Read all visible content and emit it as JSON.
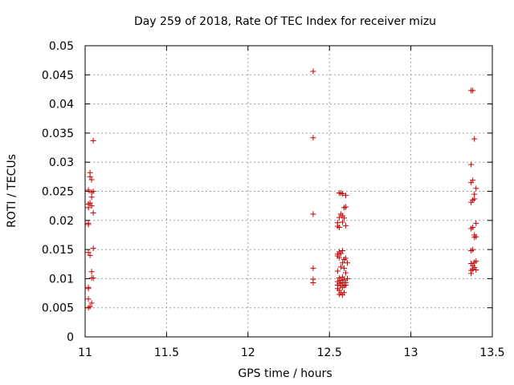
{
  "chart_data": {
    "type": "scatter",
    "title": "Day 259 of 2018, Rate Of TEC Index for receiver mizu",
    "xlabel": "GPS time / hours",
    "ylabel": "ROTI / TECUs",
    "xlim": [
      11,
      13.5
    ],
    "ylim": [
      0,
      0.05
    ],
    "xticks": [
      11,
      11.5,
      12,
      12.5,
      13,
      13.5
    ],
    "xtick_labels": [
      "11",
      "11.5",
      "12",
      "12.5",
      "13",
      "13.5"
    ],
    "yticks": [
      0,
      0.005,
      0.01,
      0.015,
      0.02,
      0.025,
      0.03,
      0.035,
      0.04,
      0.045,
      0.05
    ],
    "ytick_labels": [
      "0",
      "0.005",
      "0.01",
      "0.015",
      "0.02",
      "0.025",
      "0.03",
      "0.035",
      "0.04",
      "0.045",
      "0.05"
    ],
    "grid": true,
    "marker": "+",
    "marker_color": "#cc0000",
    "series": [
      {
        "name": "ROTI",
        "points": [
          [
            11.02,
            0.0252
          ],
          [
            11.02,
            0.0228
          ],
          [
            11.02,
            0.0222
          ],
          [
            11.02,
            0.0195
          ],
          [
            11.02,
            0.0193
          ],
          [
            11.02,
            0.0145
          ],
          [
            11.02,
            0.0085
          ],
          [
            11.02,
            0.0083
          ],
          [
            11.02,
            0.0065
          ],
          [
            11.02,
            0.005
          ],
          [
            11.03,
            0.0282
          ],
          [
            11.03,
            0.0275
          ],
          [
            11.03,
            0.023
          ],
          [
            11.03,
            0.014
          ],
          [
            11.03,
            0.0052
          ],
          [
            11.04,
            0.027
          ],
          [
            11.04,
            0.0248
          ],
          [
            11.04,
            0.024
          ],
          [
            11.04,
            0.0225
          ],
          [
            11.04,
            0.0112
          ],
          [
            11.04,
            0.0101
          ],
          [
            11.04,
            0.0058
          ],
          [
            11.05,
            0.0337
          ],
          [
            11.05,
            0.025
          ],
          [
            11.05,
            0.0213
          ],
          [
            11.05,
            0.0152
          ],
          [
            11.05,
            0.0101
          ],
          [
            12.4,
            0.0456
          ],
          [
            12.4,
            0.0342
          ],
          [
            12.4,
            0.0211
          ],
          [
            12.4,
            0.0118
          ],
          [
            12.4,
            0.0099
          ],
          [
            12.4,
            0.0093
          ],
          [
            12.55,
            0.0196
          ],
          [
            12.55,
            0.019
          ],
          [
            12.55,
            0.0142
          ],
          [
            12.55,
            0.0139
          ],
          [
            12.55,
            0.0113
          ],
          [
            12.55,
            0.0095
          ],
          [
            12.55,
            0.0089
          ],
          [
            12.55,
            0.0083
          ],
          [
            12.56,
            0.0247
          ],
          [
            12.56,
            0.0205
          ],
          [
            12.56,
            0.0188
          ],
          [
            12.56,
            0.0146
          ],
          [
            12.56,
            0.0136
          ],
          [
            12.56,
            0.0101
          ],
          [
            12.56,
            0.0092
          ],
          [
            12.56,
            0.008
          ],
          [
            12.56,
            0.0073
          ],
          [
            12.57,
            0.0247
          ],
          [
            12.57,
            0.0211
          ],
          [
            12.57,
            0.0143
          ],
          [
            12.57,
            0.012
          ],
          [
            12.57,
            0.0097
          ],
          [
            12.57,
            0.0088
          ],
          [
            12.57,
            0.0076
          ],
          [
            12.58,
            0.0246
          ],
          [
            12.58,
            0.0208
          ],
          [
            12.58,
            0.0197
          ],
          [
            12.58,
            0.0148
          ],
          [
            12.58,
            0.0127
          ],
          [
            12.58,
            0.0103
          ],
          [
            12.58,
            0.0093
          ],
          [
            12.58,
            0.0085
          ],
          [
            12.58,
            0.0072
          ],
          [
            12.59,
            0.0222
          ],
          [
            12.59,
            0.0204
          ],
          [
            12.59,
            0.0133
          ],
          [
            12.59,
            0.0118
          ],
          [
            12.59,
            0.0098
          ],
          [
            12.59,
            0.0088
          ],
          [
            12.59,
            0.0076
          ],
          [
            12.6,
            0.0243
          ],
          [
            12.6,
            0.0223
          ],
          [
            12.6,
            0.0191
          ],
          [
            12.6,
            0.0135
          ],
          [
            12.6,
            0.011
          ],
          [
            12.6,
            0.0093
          ],
          [
            12.6,
            0.0089
          ],
          [
            12.61,
            0.0127
          ],
          [
            12.61,
            0.01
          ],
          [
            13.37,
            0.0423
          ],
          [
            13.37,
            0.0296
          ],
          [
            13.37,
            0.0265
          ],
          [
            13.37,
            0.0231
          ],
          [
            13.37,
            0.0186
          ],
          [
            13.37,
            0.0148
          ],
          [
            13.37,
            0.0126
          ],
          [
            13.37,
            0.0114
          ],
          [
            13.37,
            0.0109
          ],
          [
            13.38,
            0.0423
          ],
          [
            13.38,
            0.0269
          ],
          [
            13.38,
            0.0235
          ],
          [
            13.38,
            0.0188
          ],
          [
            13.38,
            0.015
          ],
          [
            13.38,
            0.0122
          ],
          [
            13.38,
            0.0116
          ],
          [
            13.39,
            0.034
          ],
          [
            13.39,
            0.0245
          ],
          [
            13.39,
            0.0237
          ],
          [
            13.39,
            0.0175
          ],
          [
            13.39,
            0.0171
          ],
          [
            13.39,
            0.0128
          ],
          [
            13.39,
            0.0119
          ],
          [
            13.4,
            0.0255
          ],
          [
            13.4,
            0.0195
          ],
          [
            13.4,
            0.0172
          ],
          [
            13.4,
            0.013
          ],
          [
            13.4,
            0.0115
          ]
        ]
      }
    ]
  }
}
